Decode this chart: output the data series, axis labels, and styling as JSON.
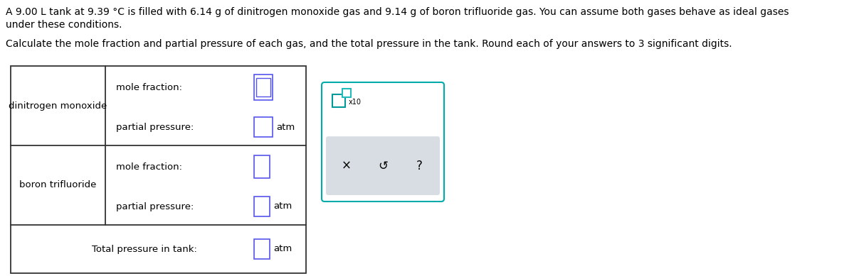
{
  "title_line1": "A 9.00 L tank at 9.39 °C is filled with 6.14 g of dinitrogen monoxide gas and 9.14 g of boron trifluoride gas. You can assume both gases behave as ideal gases",
  "title_line2": "under these conditions.",
  "subtitle": "Calculate the mole fraction and partial pressure of each gas, and the total pressure in the tank. Round each of your answers to 3 significant digits.",
  "gas1_label": "dinitrogen monoxide",
  "gas2_label": "boron trifluoride",
  "mole_fraction_label": "mole fraction:",
  "partial_pressure_label": "partial pressure:",
  "total_pressure_label": "Total pressure in tank:",
  "atm_label": "atm",
  "x10_label": "x10",
  "text_color": "#000000",
  "table_border_color": "#333333",
  "input_box_color_n2o_mf": "#5555ee",
  "input_box_color": "#5555ee",
  "teal_box_color": "#009999",
  "teal_box2_color": "#22bbbb",
  "popup_border_color": "#00aaaa",
  "popup_bg": "#ffffff",
  "popup_bottom_bg": "#d8dde3",
  "font_size_title": 10.0,
  "font_size_table": 9.5,
  "font_size_small": 7.0,
  "font_size_buttons": 12
}
